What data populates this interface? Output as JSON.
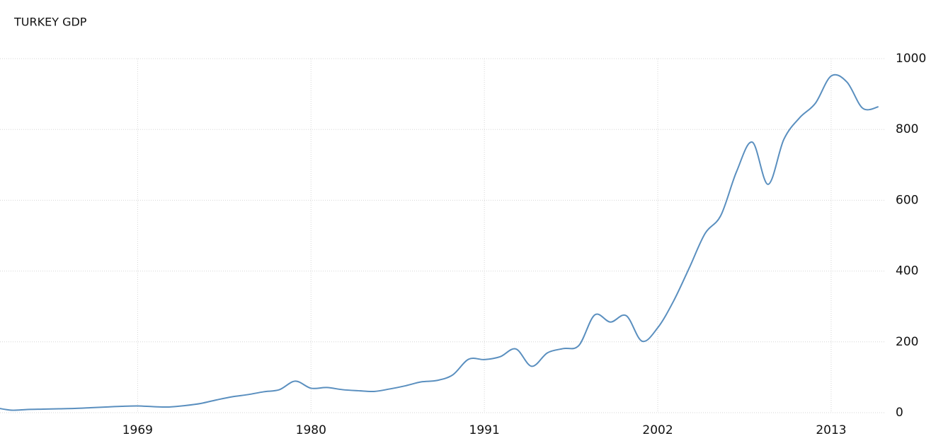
{
  "chart_data": {
    "type": "line",
    "title": "TURKEY GDP",
    "x": [
      1960,
      1961,
      1962,
      1963,
      1964,
      1965,
      1966,
      1967,
      1968,
      1969,
      1970,
      1971,
      1972,
      1973,
      1974,
      1975,
      1976,
      1977,
      1978,
      1979,
      1980,
      1981,
      1982,
      1983,
      1984,
      1985,
      1986,
      1987,
      1988,
      1989,
      1990,
      1991,
      1992,
      1993,
      1994,
      1995,
      1996,
      1997,
      1998,
      1999,
      2000,
      2001,
      2002,
      2003,
      2004,
      2005,
      2006,
      2007,
      2008,
      2009,
      2010,
      2011,
      2012,
      2013,
      2014,
      2015,
      2016
    ],
    "series": [
      {
        "color": "#5a8fbf",
        "values": [
          14,
          7,
          9,
          10,
          11,
          12,
          14,
          16,
          18,
          19,
          17,
          16,
          20,
          26,
          36,
          45,
          51,
          59,
          65,
          89,
          69,
          71,
          65,
          62,
          60,
          67,
          76,
          87,
          91,
          107,
          151,
          150,
          158,
          180,
          131,
          169,
          181,
          190,
          276,
          256,
          274,
          202,
          240,
          315,
          409,
          506,
          557,
          681,
          764,
          645,
          772,
          833,
          874,
          951,
          934,
          860,
          864
        ]
      }
    ],
    "xlim": [
      1960,
      2017
    ],
    "ylim": [
      0,
      1000
    ],
    "xticks": [
      1969,
      1980,
      1991,
      2002,
      2013
    ],
    "yticks": [
      0,
      200,
      400,
      600,
      800,
      1000
    ],
    "grid": true
  }
}
